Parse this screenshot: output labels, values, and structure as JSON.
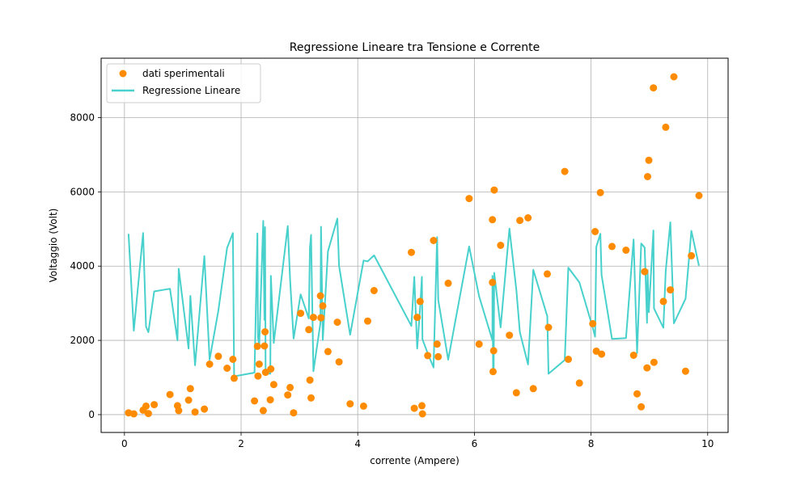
{
  "chart_data": {
    "type": "scatter",
    "title": "Regressione Lineare tra Tensione e Corrente",
    "xlabel": "corrente (Ampere)",
    "ylabel": "Voltaggio (Volt)",
    "xlim": [
      -0.4,
      10.35
    ],
    "ylim": [
      -480,
      9600
    ],
    "xticks": [
      0,
      2,
      4,
      6,
      8,
      10
    ],
    "yticks": [
      0,
      2000,
      4000,
      6000,
      8000
    ],
    "grid": true,
    "legend_position": "top-left",
    "series": [
      {
        "name": "dati sperimentali",
        "kind": "scatter",
        "color": "#ff8c00",
        "x": [
          0.07,
          0.16,
          0.32,
          0.37,
          0.41,
          0.51,
          0.78,
          0.91,
          0.93,
          1.1,
          1.13,
          1.21,
          1.37,
          1.46,
          1.61,
          1.76,
          1.86,
          1.88,
          2.23,
          2.28,
          2.29,
          2.31,
          2.38,
          2.4,
          2.41,
          2.42,
          2.5,
          2.51,
          2.56,
          2.8,
          2.84,
          2.9,
          3.02,
          3.16,
          3.18,
          3.2,
          3.24,
          3.36,
          3.37,
          3.4,
          3.49,
          3.65,
          3.68,
          3.87,
          4.1,
          4.17,
          4.28,
          4.92,
          4.97,
          5.02,
          5.07,
          5.1,
          5.11,
          5.2,
          5.3,
          5.36,
          5.38,
          5.55,
          5.91,
          6.08,
          6.31,
          6.31,
          6.32,
          6.33,
          6.34,
          6.45,
          6.6,
          6.72,
          6.78,
          6.92,
          7.01,
          7.25,
          7.27,
          7.55,
          7.61,
          7.8,
          8.03,
          8.07,
          8.09,
          8.16,
          8.18,
          8.36,
          8.6,
          8.73,
          8.79,
          8.86,
          8.92,
          8.96,
          8.97,
          8.99,
          9.07,
          9.08,
          9.24,
          9.28,
          9.36,
          9.42,
          9.62,
          9.72,
          9.85
        ],
        "y": [
          50,
          20,
          120,
          230,
          30,
          270,
          540,
          240,
          110,
          390,
          700,
          70,
          150,
          1360,
          1570,
          1250,
          1490,
          980,
          370,
          1840,
          1040,
          1360,
          110,
          1850,
          2230,
          1140,
          400,
          1230,
          810,
          530,
          730,
          50,
          2730,
          2290,
          930,
          450,
          2620,
          3200,
          2610,
          2930,
          1700,
          2490,
          1420,
          290,
          230,
          2520,
          3340,
          4370,
          170,
          2620,
          3050,
          240,
          20,
          1590,
          4690,
          1900,
          1560,
          3540,
          5820,
          1900,
          5250,
          3560,
          1160,
          1720,
          6050,
          4560,
          2140,
          590,
          5230,
          5300,
          700,
          3790,
          2350,
          6550,
          1490,
          850,
          2450,
          4930,
          1710,
          5980,
          1630,
          4530,
          4430,
          1600,
          560,
          210,
          3850,
          1260,
          6410,
          6850,
          8800,
          1410,
          3050,
          7740,
          3360,
          9100,
          1170,
          4280,
          5900
        ]
      },
      {
        "name": "Regressione Lineare",
        "kind": "line",
        "color": "#48d1cc",
        "x": [
          0.07,
          0.16,
          0.32,
          0.37,
          0.41,
          0.51,
          0.78,
          0.91,
          0.93,
          1.1,
          1.13,
          1.21,
          1.37,
          1.46,
          1.61,
          1.76,
          1.86,
          1.88,
          2.23,
          2.28,
          2.29,
          2.31,
          2.38,
          2.4,
          2.41,
          2.42,
          2.5,
          2.51,
          2.56,
          2.8,
          2.84,
          2.9,
          3.02,
          3.16,
          3.18,
          3.2,
          3.24,
          3.36,
          3.37,
          3.4,
          3.49,
          3.65,
          3.68,
          3.87,
          4.1,
          4.17,
          4.28,
          4.92,
          4.97,
          5.02,
          5.07,
          5.1,
          5.11,
          5.2,
          5.3,
          5.36,
          5.38,
          5.55,
          5.91,
          6.08,
          6.31,
          6.31,
          6.32,
          6.33,
          6.34,
          6.45,
          6.6,
          6.72,
          6.78,
          6.92,
          7.01,
          7.25,
          7.27,
          7.55,
          7.61,
          7.8,
          8.03,
          8.07,
          8.09,
          8.16,
          8.18,
          8.36,
          8.6,
          8.73,
          8.79,
          8.86,
          8.92,
          8.96,
          8.97,
          8.99,
          9.07,
          9.08,
          9.24,
          9.28,
          9.36,
          9.42,
          9.62,
          9.72,
          9.85
        ],
        "y": [
          4870,
          2260,
          4890,
          2370,
          2220,
          3320,
          3390,
          2000,
          3930,
          1780,
          3200,
          1330,
          4270,
          1480,
          2800,
          4490,
          4890,
          1030,
          1130,
          4880,
          2090,
          1840,
          5220,
          2550,
          5050,
          1120,
          1100,
          3740,
          1930,
          5080,
          3630,
          2050,
          3240,
          2590,
          4500,
          4840,
          1170,
          2470,
          5060,
          2010,
          4400,
          5280,
          4010,
          2150,
          4150,
          4130,
          4290,
          2390,
          3710,
          1780,
          2870,
          3710,
          2030,
          1650,
          1270,
          4780,
          3090,
          1480,
          4530,
          3190,
          2000,
          3740,
          1220,
          1100,
          3820,
          2350,
          5010,
          3350,
          2220,
          1350,
          3900,
          2650,
          1100,
          1470,
          3960,
          3560,
          2340,
          2100,
          4520,
          4870,
          3760,
          2040,
          2060,
          4720,
          1660,
          4610,
          4500,
          2470,
          3890,
          2760,
          4960,
          2860,
          2340,
          3870,
          5180,
          2460,
          3120,
          4950,
          4010
        ]
      }
    ]
  }
}
